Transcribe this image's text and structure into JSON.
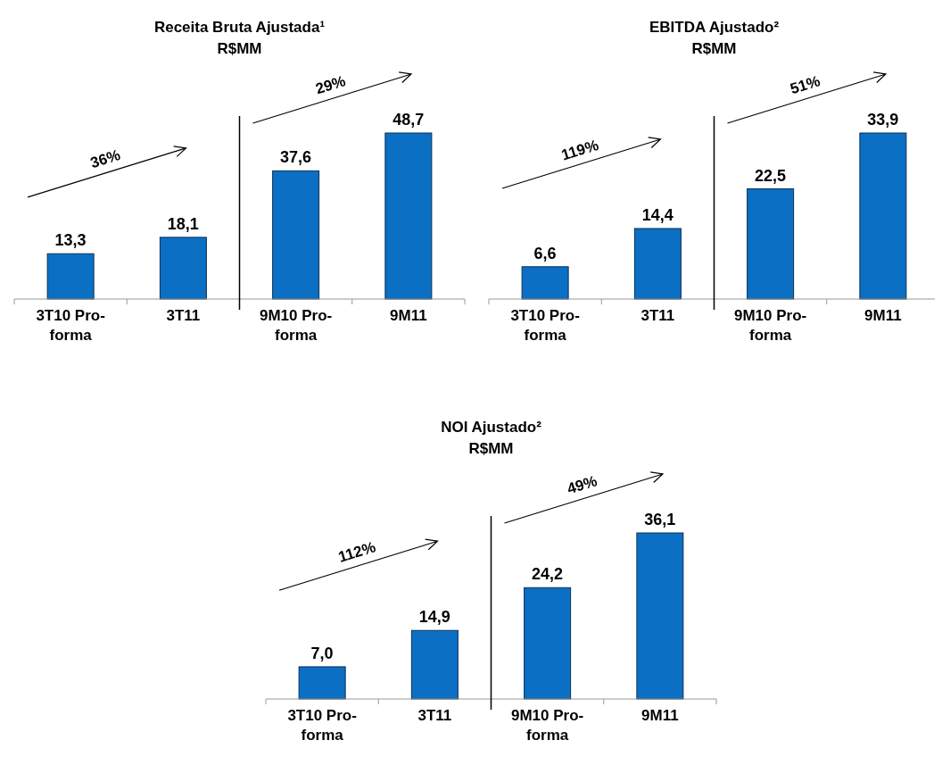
{
  "chart_data": [
    {
      "type": "bar",
      "title": "Receita Bruta Ajustada¹",
      "subtitle": "R$MM",
      "categories": [
        "3T10 Pro-forma",
        "3T11",
        "9M10 Pro-forma",
        "9M11"
      ],
      "values": [
        13.3,
        18.1,
        37.6,
        48.7
      ],
      "value_labels": [
        "13,3",
        "18,1",
        "37,6",
        "48,7"
      ],
      "color": "#0b6fc4",
      "annotations": [
        "36%",
        "29%"
      ]
    },
    {
      "type": "bar",
      "title": "EBITDA Ajustado²",
      "subtitle": "R$MM",
      "categories": [
        "3T10 Pro-forma",
        "3T11",
        "9M10 Pro-forma",
        "9M11"
      ],
      "values": [
        6.6,
        14.4,
        22.5,
        33.9
      ],
      "value_labels": [
        "6,6",
        "14,4",
        "22,5",
        "33,9"
      ],
      "color": "#0b6fc4",
      "annotations": [
        "119%",
        "51%"
      ]
    },
    {
      "type": "bar",
      "title": "NOI Ajustado²",
      "subtitle": "R$MM",
      "categories": [
        "3T10 Pro-forma",
        "3T11",
        "9M10 Pro-forma",
        "9M11"
      ],
      "values": [
        7.0,
        14.9,
        24.2,
        36.1
      ],
      "value_labels": [
        "7,0",
        "14,9",
        "24,2",
        "36,1"
      ],
      "color": "#0b6fc4",
      "annotations": [
        "112%",
        "49%"
      ]
    }
  ]
}
